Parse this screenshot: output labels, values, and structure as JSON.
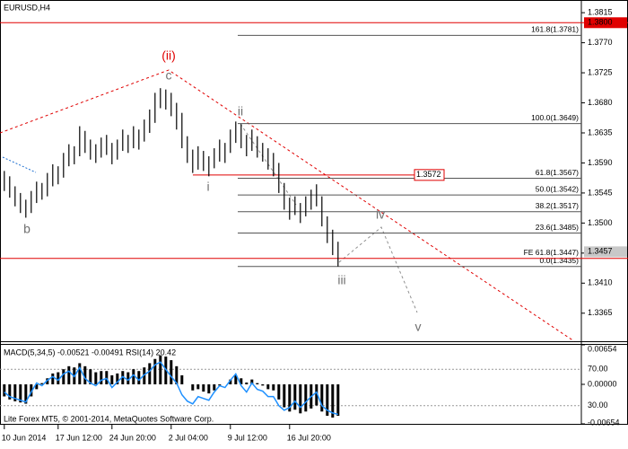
{
  "chart_data": [
    {
      "type": "ohlc",
      "title": "EURUSD,H4",
      "high": [
        1.3578,
        1.357,
        1.3555,
        1.3545,
        1.3535,
        1.3548,
        1.3562,
        1.356,
        1.3575,
        1.3588,
        1.3585,
        1.3605,
        1.3618,
        1.3615,
        1.3645,
        1.3638,
        1.3625,
        1.3618,
        1.3628,
        1.3632,
        1.362,
        1.3625,
        1.364,
        1.3632,
        1.3645,
        1.364,
        1.3655,
        1.367,
        1.3695,
        1.3702,
        1.37,
        1.3695,
        1.368,
        1.3665,
        1.363,
        1.361,
        1.3615,
        1.3608,
        1.36,
        1.3612,
        1.3625,
        1.362,
        1.364,
        1.3652,
        1.3648,
        1.3632,
        1.364,
        1.363,
        1.362,
        1.3612,
        1.3605,
        1.359,
        1.356,
        1.3538,
        1.354,
        1.353,
        1.354,
        1.355,
        1.3558,
        1.354,
        1.351,
        1.349,
        1.3472
      ],
      "low": [
        1.3548,
        1.3538,
        1.3525,
        1.3515,
        1.3508,
        1.3515,
        1.353,
        1.3535,
        1.354,
        1.3555,
        1.3558,
        1.3568,
        1.3585,
        1.3588,
        1.36,
        1.3605,
        1.3595,
        1.359,
        1.3598,
        1.3602,
        1.3588,
        1.3595,
        1.3608,
        1.3605,
        1.3612,
        1.361,
        1.3622,
        1.3635,
        1.365,
        1.3672,
        1.367,
        1.366,
        1.364,
        1.3612,
        1.359,
        1.3575,
        1.358,
        1.3578,
        1.357,
        1.3582,
        1.3592,
        1.359,
        1.3605,
        1.362,
        1.3612,
        1.36,
        1.3608,
        1.3598,
        1.3592,
        1.358,
        1.357,
        1.3545,
        1.352,
        1.3505,
        1.3512,
        1.35,
        1.351,
        1.352,
        1.3525,
        1.3495,
        1.347,
        1.3452,
        1.3435
      ],
      "color": "#000000",
      "xlim": [
        -0.8,
        107.2
      ],
      "xticks": [
        {
          "value": 0,
          "label": "10 Jun 2014"
        },
        {
          "value": 10,
          "label": "17 Jun 12:00"
        },
        {
          "value": 20,
          "label": "24 Jun 20:00"
        },
        {
          "value": 31,
          "label": "2 Jul 04:00"
        },
        {
          "value": 42,
          "label": "9 Jul 12:00"
        },
        {
          "value": 53,
          "label": "16 Jul 20:00"
        }
      ],
      "ylim": [
        1.3323,
        1.3834
      ],
      "yticks": [
        1.3815,
        {
          "value": 1.377,
          "label": "1.3770"
        },
        1.3725,
        {
          "value": 1.368,
          "label": "1.3680"
        },
        1.3635,
        {
          "value": 1.359,
          "label": "1.3590"
        },
        1.3545,
        {
          "value": 1.35,
          "label": "1.3500"
        },
        1.3455,
        {
          "value": 1.341,
          "label": "1.3410"
        },
        1.3365
      ],
      "grid": false,
      "fib_levels": [
        {
          "value": 1.3781,
          "label": "161.8(1.3781)"
        },
        {
          "value": 1.3649,
          "label": "100.0(1.3649)"
        },
        {
          "value": 1.3567,
          "label": "61.8(1.3567)"
        },
        {
          "value": 1.3542,
          "label": "50.0(1.3542)"
        },
        {
          "value": 1.3517,
          "label": "38.2(1.3517)"
        },
        {
          "value": 1.3485,
          "label": "23.6(1.3485)"
        },
        {
          "value": 1.3435,
          "label": "0.0(1.3435)"
        }
      ],
      "high_level": {
        "value": 1.38,
        "label": "1.3800"
      },
      "breakout_level": {
        "value": 1.3572,
        "label": "1.3572"
      },
      "fe_level": {
        "value": 1.3447,
        "label": "FE 61.8(1.3447)"
      },
      "last_price": {
        "value": 1.3457,
        "label": "1.3457"
      },
      "level_color": "#e00000",
      "wave_labels": [
        "(ii)",
        "c",
        "ii",
        "i",
        "b",
        "iv",
        "iii",
        "v"
      ]
    },
    {
      "type": "macd",
      "title": "MACD(5,34,5) -0.00521 -0.00491 RSI(14) 20.42",
      "copyright": "Lite Forex MT5, © 2001-2014, MetaQuotes Software Corp.",
      "series": [
        {
          "color": "#000000",
          "values": [
            -0.002,
            -0.0025,
            -0.0028,
            -0.003,
            -0.0032,
            -0.002,
            -0.0008,
            0.0002,
            0.001,
            0.0018,
            0.002,
            0.0025,
            0.003,
            0.0028,
            0.0035,
            0.003,
            0.0025,
            0.002,
            0.0022,
            0.0022,
            0.0015,
            0.0018,
            0.0022,
            0.002,
            0.0025,
            0.0022,
            0.0028,
            0.0035,
            0.0042,
            0.0048,
            0.0046,
            0.004,
            0.003,
            0.0015,
            0.0,
            -0.001,
            -0.0008,
            -0.0012,
            -0.0015,
            -0.001,
            -0.0002,
            0.0,
            0.0008,
            0.0015,
            0.001,
            0.0003,
            0.0008,
            0.0002,
            -0.0002,
            -0.0008,
            -0.001,
            -0.0025,
            -0.0038,
            -0.0045,
            -0.0042,
            -0.0048,
            -0.0045,
            -0.004,
            -0.0035,
            -0.0045,
            -0.0052,
            -0.0055,
            -0.00521
          ]
        },
        {
          "color": "#1e90ff",
          "axis": "y2",
          "values": [
            45,
            40,
            38,
            36,
            34,
            45,
            55,
            52,
            58,
            62,
            58,
            65,
            68,
            62,
            72,
            60,
            55,
            52,
            58,
            60,
            50,
            56,
            62,
            58,
            64,
            58,
            64,
            68,
            75,
            78,
            70,
            62,
            55,
            42,
            35,
            32,
            40,
            38,
            36,
            45,
            52,
            50,
            58,
            65,
            52,
            45,
            55,
            48,
            46,
            40,
            40,
            30,
            25,
            28,
            35,
            28,
            34,
            40,
            45,
            30,
            25,
            22,
            20.42
          ]
        }
      ],
      "ylim": [
        -0.00654,
        0.00654
      ],
      "yticks": [
        0.00654,
        {
          "value": 0,
          "label": "0.00000"
        },
        -0.00654
      ],
      "y2lim": [
        10,
        97
      ],
      "y2ticks": [
        {
          "value": 70,
          "label": "70.00"
        },
        {
          "value": 30,
          "label": "30.00"
        }
      ]
    }
  ]
}
